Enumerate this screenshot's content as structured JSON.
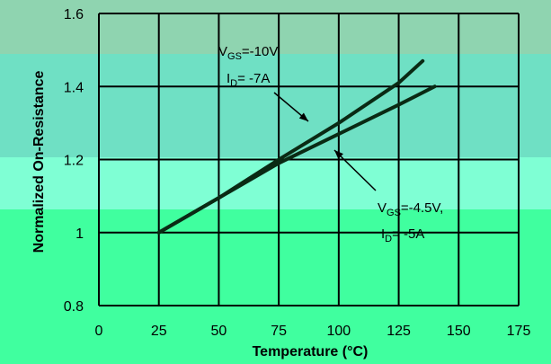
{
  "chart_data": {
    "type": "line",
    "xlabel": "Temperature (°C)",
    "ylabel": "Normalized On-Resistance",
    "xlim": [
      0,
      175
    ],
    "ylim": [
      0.8,
      1.6
    ],
    "x_ticks": [
      "0",
      "25",
      "50",
      "75",
      "100",
      "125",
      "150",
      "175"
    ],
    "y_ticks": [
      "0.8",
      "1",
      "1.2",
      "1.4",
      "1.6"
    ],
    "grid": true,
    "colors": {
      "band_top": "#8fd4b0",
      "band_mid": "#6fe0c4",
      "band_low": "#7fffd4",
      "band_bottom": "#40ff9f",
      "grid": "#000000",
      "series": "#0a2a14"
    },
    "series": [
      {
        "annotation_lines": [
          "VGS=-10V,",
          "ID= -7A"
        ],
        "x": [
          25,
          50,
          75,
          100,
          125,
          135
        ],
        "y": [
          1.0,
          1.095,
          1.2,
          1.3,
          1.41,
          1.47
        ]
      },
      {
        "annotation_lines": [
          "VGS=-4.5V,",
          "ID= -5A"
        ],
        "x": [
          25,
          50,
          75,
          100,
          125,
          140
        ],
        "y": [
          1.0,
          1.095,
          1.19,
          1.27,
          1.35,
          1.4
        ]
      }
    ],
    "annotations": [
      {
        "sub_letter": "GS",
        "prefix": "V",
        "rest": "=-10V,",
        "prefix2": "I",
        "sub2": "D",
        "rest2": "= -7A"
      },
      {
        "sub_letter": "GS",
        "prefix": "V",
        "rest": "=-4.5V,",
        "prefix2": "I",
        "sub2": "D",
        "rest2": "= -5A"
      }
    ]
  }
}
